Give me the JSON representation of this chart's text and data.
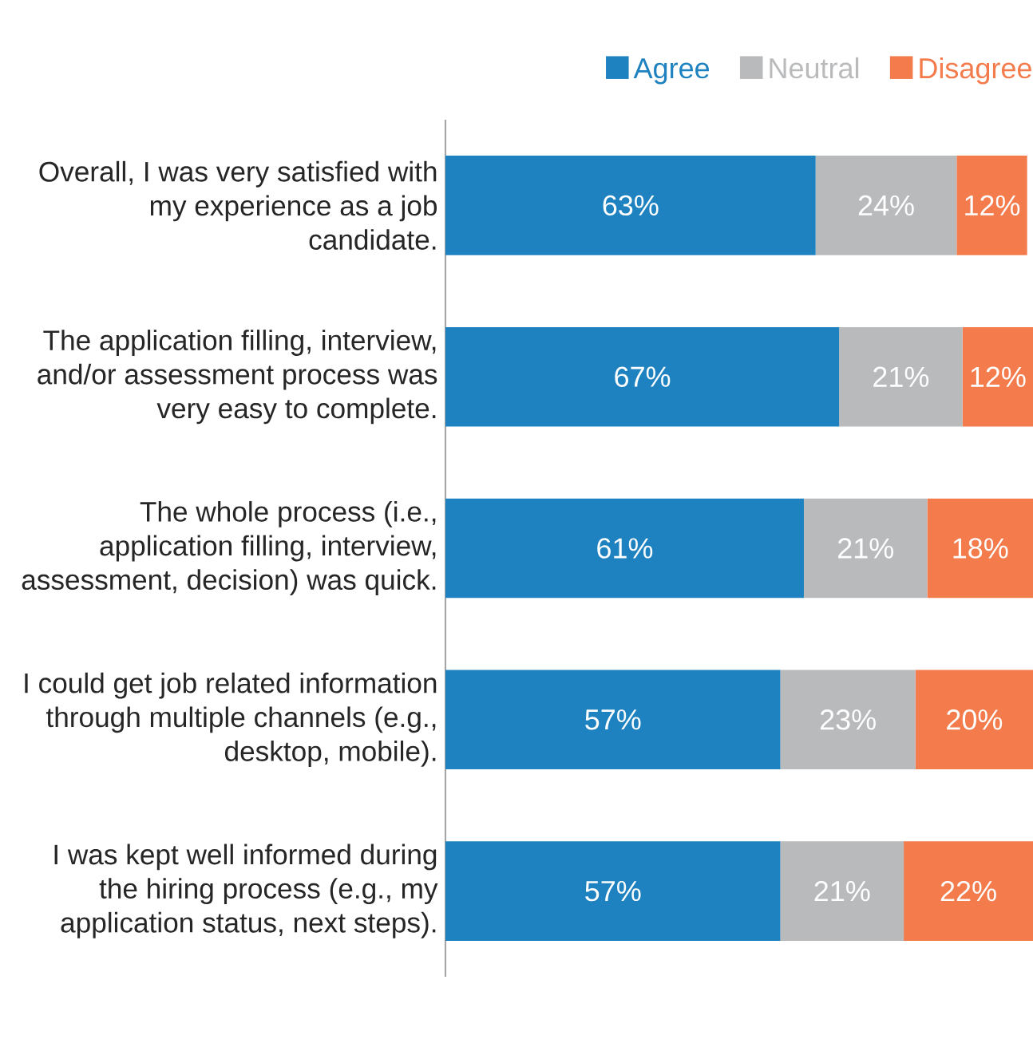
{
  "chart_data": {
    "type": "bar",
    "orientation": "horizontal",
    "stacked": true,
    "legend": "top right",
    "categories": [
      "Overall, I was very satisfied with my experience as a job candidate.",
      "The application filling, interview, and/or assessment process was very easy to complete.",
      "The whole process (i.e., application filling, interview, assessment, decision) was quick.",
      "I could get job related information through multiple channels (e.g., desktop, mobile).",
      "I was kept well informed during the hiring process (e.g., my application status, next steps)."
    ],
    "series": [
      {
        "name": "Agree",
        "color": "#1f82c0",
        "values": [
          63,
          67,
          61,
          57,
          57
        ],
        "value_labels": [
          "63%",
          "67%",
          "61%",
          "57%",
          "57%"
        ]
      },
      {
        "name": "Neutral",
        "color": "#b9babc",
        "values": [
          24,
          21,
          21,
          23,
          21
        ],
        "value_labels": [
          "24%",
          "21%",
          "21%",
          "23%",
          "21%"
        ]
      },
      {
        "name": "Disagree",
        "color": "#f47b4b",
        "values": [
          12,
          12,
          18,
          20,
          22
        ],
        "value_labels": [
          "12%",
          "12%",
          "18%",
          "20%",
          "22%"
        ]
      }
    ]
  }
}
